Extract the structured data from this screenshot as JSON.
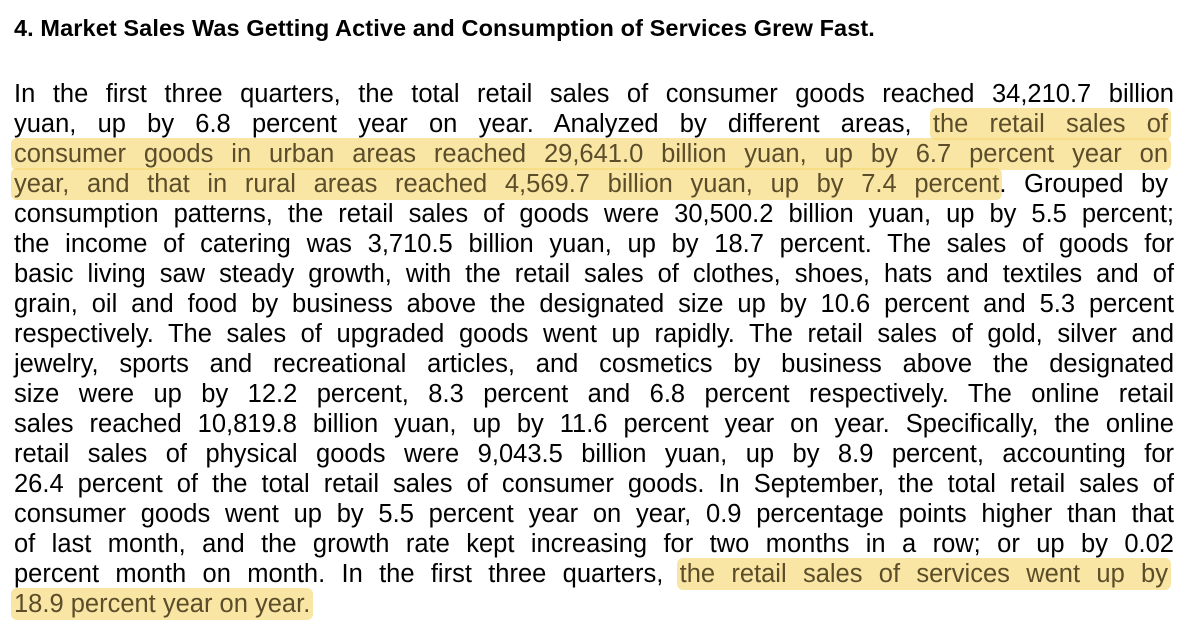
{
  "heading": "4. Market Sales Was Getting Active and Consumption of Services Grew Fast.",
  "colors": {
    "highlight": "#f5d66e",
    "text": "#000000",
    "background": "#ffffff"
  },
  "paragraph": {
    "lines": [
      [
        {
          "text": "In the first three quarters, the total retail sales of consumer goods reached 34,210.7 billion",
          "hl": false
        }
      ],
      [
        {
          "text": "yuan, up by 6.8 percent year on year. Analyzed by different areas, ",
          "hl": false
        },
        {
          "text": "the retail sales of",
          "hl": true
        }
      ],
      [
        {
          "text": "consumer goods in urban areas reached 29,641.0 billion yuan, up by 6.7 percent year on",
          "hl": true
        }
      ],
      [
        {
          "text": "year, and that in rural areas reached 4,569.7 billion yuan, up by 7.4 percent",
          "hl": true
        },
        {
          "text": ". Grouped by",
          "hl": false
        }
      ],
      [
        {
          "text": "consumption patterns, the retail sales of goods were 30,500.2 billion yuan, up by 5.5 percent;",
          "hl": false
        }
      ],
      [
        {
          "text": "the income of catering was 3,710.5 billion yuan, up by 18.7 percent. The sales of goods for",
          "hl": false
        }
      ],
      [
        {
          "text": "basic living saw steady growth, with the retail sales of clothes, shoes, hats and textiles and of",
          "hl": false
        }
      ],
      [
        {
          "text": "grain, oil and food by business above the designated size up by 10.6 percent and 5.3 percent",
          "hl": false
        }
      ],
      [
        {
          "text": "respectively. The sales of upgraded goods went up rapidly. The retail sales of gold, silver and",
          "hl": false
        }
      ],
      [
        {
          "text": "jewelry, sports and recreational articles, and cosmetics by business above the designated",
          "hl": false
        }
      ],
      [
        {
          "text": "size were up by 12.2 percent, 8.3 percent and 6.8 percent respectively. The online retail",
          "hl": false
        }
      ],
      [
        {
          "text": "sales reached 10,819.8 billion yuan, up by 11.6 percent year on year. Specifically, the online",
          "hl": false
        }
      ],
      [
        {
          "text": "retail sales of physical goods were 9,043.5 billion yuan, up by 8.9 percent, accounting for",
          "hl": false
        }
      ],
      [
        {
          "text": "26.4 percent of the total retail sales of consumer goods. In September, the total retail sales of",
          "hl": false
        }
      ],
      [
        {
          "text": "consumer goods went up by 5.5 percent year on year, 0.9 percentage points higher than that",
          "hl": false
        }
      ],
      [
        {
          "text": "of last month, and the growth rate kept increasing for two months in a row; or up by 0.02",
          "hl": false
        }
      ],
      [
        {
          "text": "percent month on month. In the first three quarters, ",
          "hl": false
        },
        {
          "text": "the retail sales of services went up by",
          "hl": true
        }
      ],
      [
        {
          "text": "18.9 percent year on year.",
          "hl": true
        }
      ]
    ]
  }
}
